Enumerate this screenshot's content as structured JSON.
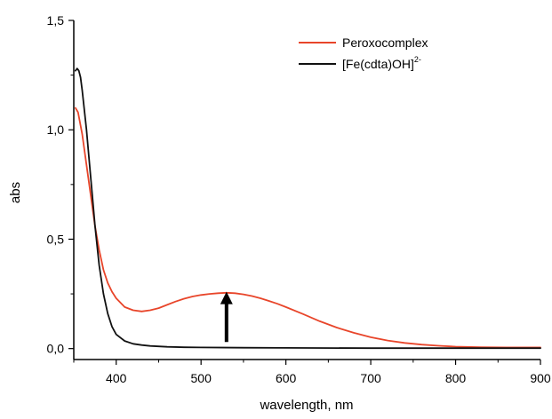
{
  "chart_data": {
    "type": "line",
    "title": "",
    "xlabel": "wavelength, nm",
    "ylabel": "abs",
    "xlim": [
      350,
      900
    ],
    "ylim": [
      -0.05,
      1.5
    ],
    "x_ticks": [
      400,
      500,
      600,
      700,
      800,
      900
    ],
    "x_tick_labels": [
      "400",
      "500",
      "600",
      "700",
      "800",
      "900"
    ],
    "y_ticks": [
      0,
      0.5,
      1.0,
      1.5
    ],
    "y_tick_labels": [
      "0,0",
      "0,5",
      "1,0",
      "1,5"
    ],
    "grid": false,
    "legend": {
      "position": "top-right",
      "entries": [
        {
          "label": "Peroxocomplex",
          "color": "#e8452a"
        },
        {
          "label_main": "[Fe(cdta)OH]",
          "label_sup": "2-",
          "color": "#111111"
        }
      ]
    },
    "annotation": {
      "type": "arrow",
      "direction": "up",
      "x": 530,
      "y_from": 0.03,
      "y_to": 0.26
    },
    "series": [
      {
        "name": "Peroxocomplex",
        "color": "#e8452a",
        "x": [
          352,
          355,
          360,
          365,
          370,
          375,
          380,
          385,
          390,
          395,
          400,
          410,
          420,
          430,
          440,
          450,
          460,
          470,
          480,
          490,
          500,
          510,
          520,
          530,
          540,
          550,
          560,
          570,
          580,
          590,
          600,
          620,
          640,
          660,
          680,
          700,
          720,
          740,
          760,
          780,
          800,
          830,
          860,
          900
        ],
        "y": [
          1.1,
          1.08,
          0.98,
          0.84,
          0.7,
          0.56,
          0.45,
          0.36,
          0.3,
          0.26,
          0.23,
          0.19,
          0.175,
          0.17,
          0.175,
          0.185,
          0.2,
          0.215,
          0.228,
          0.238,
          0.245,
          0.25,
          0.253,
          0.255,
          0.253,
          0.248,
          0.24,
          0.23,
          0.218,
          0.205,
          0.19,
          0.158,
          0.125,
          0.096,
          0.072,
          0.052,
          0.037,
          0.026,
          0.018,
          0.013,
          0.009,
          0.006,
          0.005,
          0.005
        ]
      },
      {
        "name_main": "[Fe(cdta)OH]",
        "name_sup": "2-",
        "color": "#111111",
        "x": [
          352,
          354,
          356,
          358,
          360,
          365,
          370,
          375,
          380,
          385,
          390,
          395,
          400,
          410,
          420,
          430,
          440,
          460,
          480,
          500,
          550,
          600,
          700,
          800,
          900
        ],
        "y": [
          1.27,
          1.28,
          1.27,
          1.24,
          1.18,
          1.0,
          0.78,
          0.56,
          0.38,
          0.25,
          0.16,
          0.1,
          0.065,
          0.035,
          0.022,
          0.016,
          0.012,
          0.008,
          0.006,
          0.005,
          0.004,
          0.003,
          0.002,
          0.002,
          0.002
        ]
      }
    ]
  }
}
